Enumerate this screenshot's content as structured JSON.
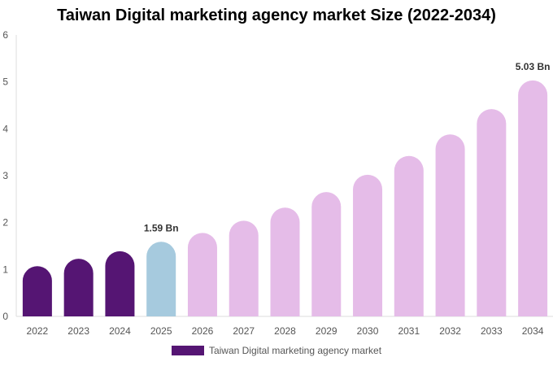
{
  "chart_data": {
    "type": "bar",
    "title": "Taiwan Digital marketing agency market Size (2022-2034)",
    "categories": [
      "2022",
      "2023",
      "2024",
      "2025",
      "2026",
      "2027",
      "2028",
      "2029",
      "2030",
      "2031",
      "2032",
      "2033",
      "2034"
    ],
    "series": [
      {
        "name": "Taiwan Digital marketing agency market",
        "values": [
          1.07,
          1.23,
          1.39,
          1.59,
          1.78,
          2.04,
          2.32,
          2.65,
          3.02,
          3.42,
          3.88,
          4.42,
          5.03
        ]
      }
    ],
    "ylim": [
      0,
      6
    ],
    "yticks": [
      "0",
      "1",
      "2",
      "3",
      "4",
      "5",
      "6"
    ],
    "data_labels": [
      {
        "category": "2025",
        "text": "1.59 Bn"
      },
      {
        "category": "2034",
        "text": "5.03 Bn"
      }
    ],
    "bar_colors": [
      "#551573",
      "#551573",
      "#551573",
      "#a6cade",
      "#e5bce8",
      "#e5bce8",
      "#e5bce8",
      "#e5bce8",
      "#e5bce8",
      "#e5bce8",
      "#e5bce8",
      "#e5bce8",
      "#e5bce8"
    ],
    "legend_color": "#551573",
    "legend_position": "bottom",
    "grid": false
  }
}
